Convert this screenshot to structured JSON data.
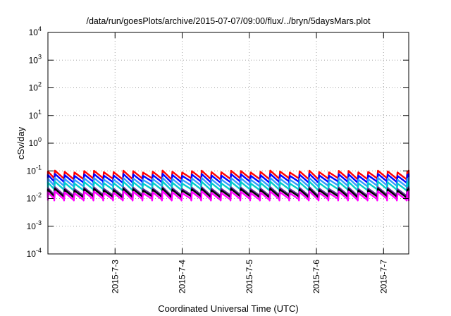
{
  "chart_data": {
    "type": "line",
    "title": "/data/run/goesPlots/archive/2015-07-07/09:00/flux/../bryn/5daysMars.plot",
    "xlabel": "Coordinated Universal Time (UTC)",
    "ylabel": "cSv/day",
    "y_scale": "log",
    "ylim": [
      0.0001,
      10000
    ],
    "y_ticks": [
      {
        "value": 0.0001,
        "base": "10",
        "exp": "-4"
      },
      {
        "value": 0.001,
        "base": "10",
        "exp": "-3"
      },
      {
        "value": 0.01,
        "base": "10",
        "exp": "-2"
      },
      {
        "value": 0.1,
        "base": "10",
        "exp": "-1"
      },
      {
        "value": 1,
        "base": "10",
        "exp": "0"
      },
      {
        "value": 10,
        "base": "10",
        "exp": "1"
      },
      {
        "value": 100,
        "base": "10",
        "exp": "2"
      },
      {
        "value": 1000,
        "base": "10",
        "exp": "3"
      },
      {
        "value": 10000,
        "base": "10",
        "exp": "4"
      }
    ],
    "xlim": [
      "2015-07-02 00:00",
      "2015-07-07 09:00"
    ],
    "x_ticks": [
      {
        "value": "2015-07-03 00:00",
        "label": "2015-7-3"
      },
      {
        "value": "2015-07-04 00:00",
        "label": "2015-7-4"
      },
      {
        "value": "2015-07-05 00:00",
        "label": "2015-7-5"
      },
      {
        "value": "2015-07-06 00:00",
        "label": "2015-7-6"
      },
      {
        "value": "2015-07-07 00:00",
        "label": "2015-7-7"
      }
    ],
    "grid": true,
    "pattern": {
      "cycle_hours": 3.5,
      "dip_factor": 0.55
    },
    "series": [
      {
        "color": "#ff0000",
        "peak": 0.095,
        "base": 0.048
      },
      {
        "color": "#0000ff",
        "peak": 0.072,
        "base": 0.036
      },
      {
        "color": "#3399ff",
        "peak": 0.052,
        "base": 0.026
      },
      {
        "color": "#00cccc",
        "peak": 0.038,
        "base": 0.019
      },
      {
        "color": "#663399",
        "peak": 0.024,
        "base": 0.012
      },
      {
        "color": "#000000",
        "peak": 0.021,
        "base": 0.0105
      },
      {
        "color": "#ff00ff",
        "peak": 0.017,
        "base": 0.0085
      }
    ]
  }
}
